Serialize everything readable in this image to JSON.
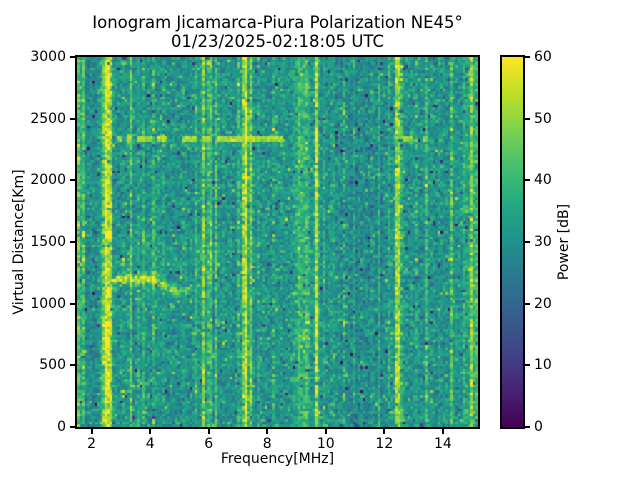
{
  "figure": {
    "background_color": "#ffffff",
    "text_color": "#000000"
  },
  "chart_data": {
    "type": "heatmap",
    "title": "Ionogram Jicamarca-Piura Polarization NE45°",
    "subtitle": "01/23/2025-02:18:05 UTC",
    "xlabel": "Frequency[MHz]",
    "ylabel": "Virtual Distance[Km]",
    "colorbar_label": "Power [dB]",
    "xlim": [
      1.5,
      15.2
    ],
    "ylim": [
      0,
      3000
    ],
    "clim": [
      0,
      60
    ],
    "x_ticks": [
      2,
      4,
      6,
      8,
      10,
      12,
      14
    ],
    "y_ticks": [
      0,
      500,
      1000,
      1500,
      2000,
      2500,
      3000
    ],
    "colorbar_ticks": [
      0,
      10,
      20,
      30,
      40,
      50,
      60
    ],
    "legend_position": "right-colorbar",
    "grid": "off",
    "colormap": "viridis",
    "colormap_stops": [
      "#440154",
      "#482475",
      "#414487",
      "#355f8d",
      "#2a788e",
      "#21918c",
      "#22a884",
      "#44bf70",
      "#7ad151",
      "#bddf26",
      "#fde725"
    ],
    "noise_floor_db": 30,
    "noise_std_db": 4.5,
    "bins": {
      "nx": 160,
      "ny": 140
    },
    "rfi_stripes": [
      {
        "f": 1.53,
        "w": 0.05,
        "db": 16
      },
      {
        "f": 1.68,
        "w": 0.05,
        "db": 20
      },
      {
        "f": 2.5,
        "w": 0.13,
        "db": 30
      },
      {
        "f": 2.66,
        "w": 0.05,
        "db": 14
      },
      {
        "f": 3.05,
        "w": 0.03,
        "db": 6
      },
      {
        "f": 3.33,
        "w": 0.04,
        "db": 13
      },
      {
        "f": 3.62,
        "w": 0.03,
        "db": 7
      },
      {
        "f": 3.78,
        "w": 0.03,
        "db": 9
      },
      {
        "f": 4.1,
        "w": 0.03,
        "db": 8
      },
      {
        "f": 4.42,
        "w": 0.03,
        "db": 7
      },
      {
        "f": 4.75,
        "w": 0.03,
        "db": 7
      },
      {
        "f": 5.12,
        "w": 0.03,
        "db": 6
      },
      {
        "f": 5.6,
        "w": 0.04,
        "db": 15
      },
      {
        "f": 5.81,
        "w": 0.05,
        "db": 20
      },
      {
        "f": 6.04,
        "w": 0.05,
        "db": 22
      },
      {
        "f": 6.25,
        "w": 0.04,
        "db": 13
      },
      {
        "f": 6.48,
        "w": 0.03,
        "db": 10
      },
      {
        "f": 6.8,
        "w": 0.03,
        "db": 7
      },
      {
        "f": 7.02,
        "w": 0.03,
        "db": 9
      },
      {
        "f": 7.26,
        "w": 0.09,
        "db": 28
      },
      {
        "f": 7.46,
        "w": 0.05,
        "db": 18
      },
      {
        "f": 7.7,
        "w": 0.03,
        "db": 6
      },
      {
        "f": 7.92,
        "w": 0.03,
        "db": 9
      },
      {
        "f": 8.2,
        "w": 0.03,
        "db": 6
      },
      {
        "f": 8.52,
        "w": 0.03,
        "db": 6
      },
      {
        "f": 8.78,
        "w": 0.03,
        "db": 7
      },
      {
        "f": 9.1,
        "w": 0.14,
        "db": 9
      },
      {
        "f": 9.35,
        "w": 0.1,
        "db": 10
      },
      {
        "f": 9.68,
        "w": 0.07,
        "db": 26
      },
      {
        "f": 9.92,
        "w": 0.03,
        "db": 8
      },
      {
        "f": 10.3,
        "w": 0.03,
        "db": 6
      },
      {
        "f": 10.63,
        "w": 0.03,
        "db": 14,
        "dashed": true
      },
      {
        "f": 10.95,
        "w": 0.03,
        "db": 5
      },
      {
        "f": 11.6,
        "w": 0.05,
        "db": 8
      },
      {
        "f": 11.82,
        "w": 0.04,
        "db": 8
      },
      {
        "f": 12.16,
        "w": 0.03,
        "db": 7
      },
      {
        "f": 12.46,
        "w": 0.08,
        "db": 28
      },
      {
        "f": 12.62,
        "w": 0.04,
        "db": 12
      },
      {
        "f": 13.1,
        "w": 0.03,
        "db": 6
      },
      {
        "f": 13.43,
        "w": 0.04,
        "db": 10
      },
      {
        "f": 13.9,
        "w": 0.03,
        "db": 6
      },
      {
        "f": 14.3,
        "w": 0.05,
        "db": 11
      },
      {
        "f": 14.76,
        "w": 0.05,
        "db": 13
      },
      {
        "f": 14.97,
        "w": 0.06,
        "db": 19
      },
      {
        "f": 15.12,
        "w": 0.05,
        "db": 15
      }
    ],
    "features": {
      "dashed_interference_line": {
        "km": 2340,
        "db": 50,
        "f_start": 2.4,
        "f_end": 15.2,
        "strong_until_f": 8.6
      },
      "echo_trace": {
        "f_start": 2.7,
        "f_end": 5.6,
        "km": 1150,
        "wiggle_km": 60,
        "db": 22
      },
      "diffuse_echo_patch": {
        "f_start": 2.9,
        "f_end": 6.4,
        "km_start": 1150,
        "km_end": 1500,
        "db": 7
      }
    }
  }
}
